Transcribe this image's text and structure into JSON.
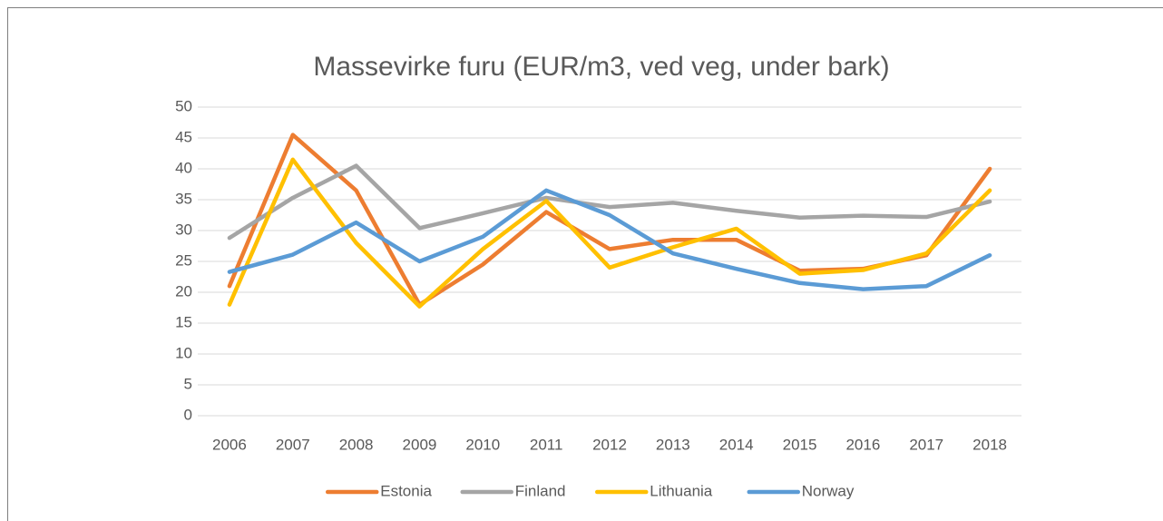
{
  "chart_data": {
    "type": "line",
    "title": "Massevirke furu (EUR/m3, ved veg, under bark)",
    "categories": [
      "2006",
      "2007",
      "2008",
      "2009",
      "2010",
      "2011",
      "2012",
      "2013",
      "2014",
      "2015",
      "2016",
      "2017",
      "2018"
    ],
    "series": [
      {
        "name": "Estonia",
        "color": "#ed7d31",
        "values": [
          21,
          45.5,
          36.5,
          18,
          24.5,
          33,
          27,
          28.5,
          28.5,
          23.5,
          23.8,
          26,
          40
        ]
      },
      {
        "name": "Finland",
        "color": "#a5a5a5",
        "values": [
          28.8,
          35.3,
          40.5,
          30.4,
          32.8,
          35.3,
          33.8,
          34.5,
          33.2,
          32.1,
          32.4,
          32.2,
          34.7
        ]
      },
      {
        "name": "Lithuania",
        "color": "#ffc000",
        "values": [
          18,
          41.5,
          28,
          17.7,
          27,
          34.8,
          24,
          27.3,
          30.3,
          23,
          23.6,
          26.3,
          36.5
        ]
      },
      {
        "name": "Norway",
        "color": "#5b9bd5",
        "values": [
          23.3,
          26.1,
          31.3,
          25,
          29,
          36.5,
          32.5,
          26.3,
          23.8,
          21.5,
          20.5,
          21,
          26
        ]
      }
    ],
    "ylim": [
      0,
      50
    ],
    "yticks": [
      0,
      5,
      10,
      15,
      20,
      25,
      30,
      35,
      40,
      45,
      50
    ],
    "grid": true,
    "legend": "bottom"
  }
}
